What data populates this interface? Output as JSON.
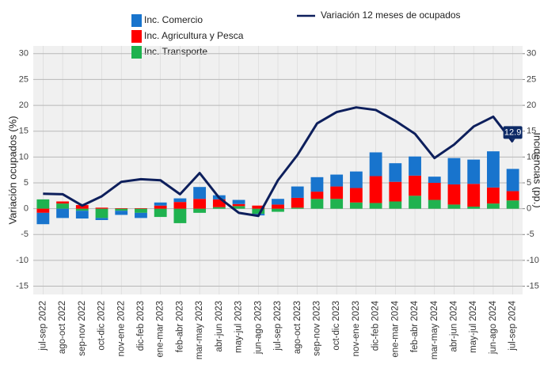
{
  "chart_data": {
    "type": "bar",
    "categories": [
      "jul-sep 2022",
      "ago-oct 2022",
      "sep-nov 2022",
      "oct-dic 2022",
      "nov-ene 2022",
      "dic-feb 2023",
      "ene-mar 2023",
      "feb-abr 2023",
      "mar-may 2023",
      "abr-jun 2023",
      "may-jul 2023",
      "jun-ago 2023",
      "jul-sep 2023",
      "ago-oct 2023",
      "sep-nov 2023",
      "oct-dic 2023",
      "nov-ene 2023",
      "dic-feb 2024",
      "ene-mar 2024",
      "feb-abr 2024",
      "mar-may 2024",
      "abr-jun 2024",
      "may-jul 2024",
      "jun-ago 2024",
      "jul-sep 2024"
    ],
    "series": [
      {
        "name": "Inc. Transporte",
        "color": "#1fb24f",
        "values": [
          1.8,
          1.0,
          -0.4,
          -1.8,
          -0.4,
          -0.8,
          -1.6,
          -2.8,
          -0.8,
          0.3,
          0.5,
          -1.0,
          -0.6,
          0.2,
          1.9,
          1.9,
          1.2,
          1.1,
          1.4,
          2.5,
          1.7,
          0.8,
          0.4,
          1.0,
          1.6
        ]
      },
      {
        "name": "Inc. Agricultura y Pesca",
        "color": "#ff0000",
        "values": [
          -0.8,
          0.4,
          0.7,
          0.2,
          0.1,
          0.1,
          0.6,
          1.3,
          1.9,
          1.5,
          0.4,
          0.6,
          0.8,
          1.9,
          1.4,
          2.4,
          2.8,
          5.2,
          3.8,
          3.9,
          3.3,
          3.9,
          4.4,
          3.1,
          1.8
        ]
      },
      {
        "name": "Inc. Comercio",
        "color": "#1874cd",
        "values": [
          -2.2,
          -1.8,
          -1.5,
          -0.4,
          -0.8,
          -1.0,
          0.6,
          0.7,
          2.3,
          0.8,
          0.8,
          -0.3,
          1.1,
          2.2,
          2.8,
          2.3,
          3.2,
          4.6,
          3.6,
          3.7,
          1.2,
          5.1,
          4.7,
          7.0,
          4.3
        ]
      },
      {
        "name": "Variación 12 meses de ocupados",
        "type": "line",
        "color": "#0d1f5c",
        "values": [
          2.9,
          2.8,
          0.6,
          2.4,
          5.2,
          5.7,
          5.5,
          2.8,
          6.9,
          2.1,
          -0.8,
          -1.4,
          5.5,
          10.4,
          16.5,
          18.7,
          19.6,
          19.1,
          17.0,
          14.5,
          9.8,
          12.4,
          15.9,
          17.8,
          12.9
        ],
        "value_labels": [
          null,
          null,
          null,
          null,
          null,
          null,
          null,
          null,
          null,
          null,
          null,
          null,
          null,
          null,
          null,
          null,
          null,
          null,
          null,
          null,
          null,
          null,
          null,
          null,
          "12.9"
        ]
      }
    ],
    "ylabel": "Variación ocupados (%)",
    "y2label": "Incidencias (pp.)",
    "ylim": [
      -16.6,
      31.5
    ],
    "yticks": [
      -15,
      -10,
      -5,
      0,
      5,
      10,
      15,
      20,
      25,
      30
    ],
    "y2lim": [
      -16.6,
      31.5
    ],
    "y2ticks": [
      -15,
      -10,
      -5,
      0,
      5,
      10,
      15,
      20,
      25,
      30
    ],
    "grid": true
  }
}
